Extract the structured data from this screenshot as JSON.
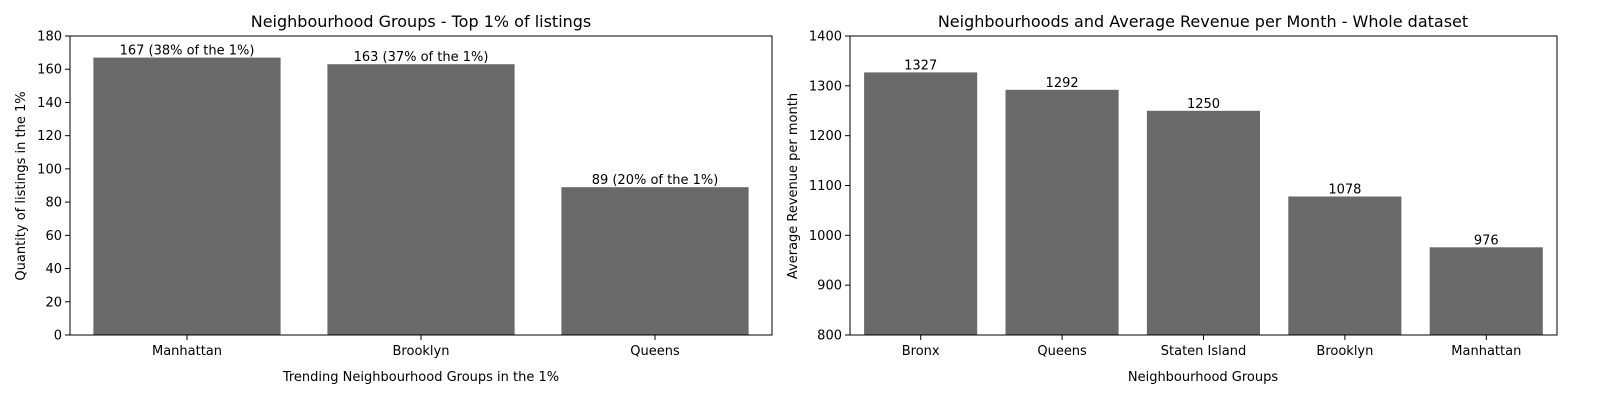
{
  "chart_data": [
    {
      "type": "bar",
      "title": "Neighbourhood Groups - Top 1% of listings",
      "xlabel": "Trending Neighbourhood Groups in the 1%",
      "ylabel": "Quantity of listings in the 1%",
      "categories": [
        "Manhattan",
        "Brooklyn",
        "Queens"
      ],
      "values": [
        167,
        163,
        89
      ],
      "data_labels": [
        "167 (38% of the 1%)",
        "163 (37% of the 1%)",
        "89 (20% of the 1%)"
      ],
      "ylim": [
        0,
        180
      ],
      "yticks": [
        0,
        20,
        40,
        60,
        80,
        100,
        120,
        140,
        160,
        180
      ],
      "bar_color": "#696969",
      "grid": false,
      "legend": "none"
    },
    {
      "type": "bar",
      "title": "Neighbourhoods and Average Revenue per Month - Whole dataset",
      "xlabel": "Neighbourhood Groups",
      "ylabel": "Average Revenue per month",
      "categories": [
        "Bronx",
        "Queens",
        "Staten Island",
        "Brooklyn",
        "Manhattan"
      ],
      "values": [
        1327,
        1292,
        1250,
        1078,
        976
      ],
      "data_labels": [
        "1327",
        "1292",
        "1250",
        "1078",
        "976"
      ],
      "ylim": [
        800,
        1400
      ],
      "yticks": [
        800,
        900,
        1000,
        1100,
        1200,
        1300,
        1400
      ],
      "bar_color": "#696969",
      "grid": false,
      "legend": "none"
    }
  ]
}
